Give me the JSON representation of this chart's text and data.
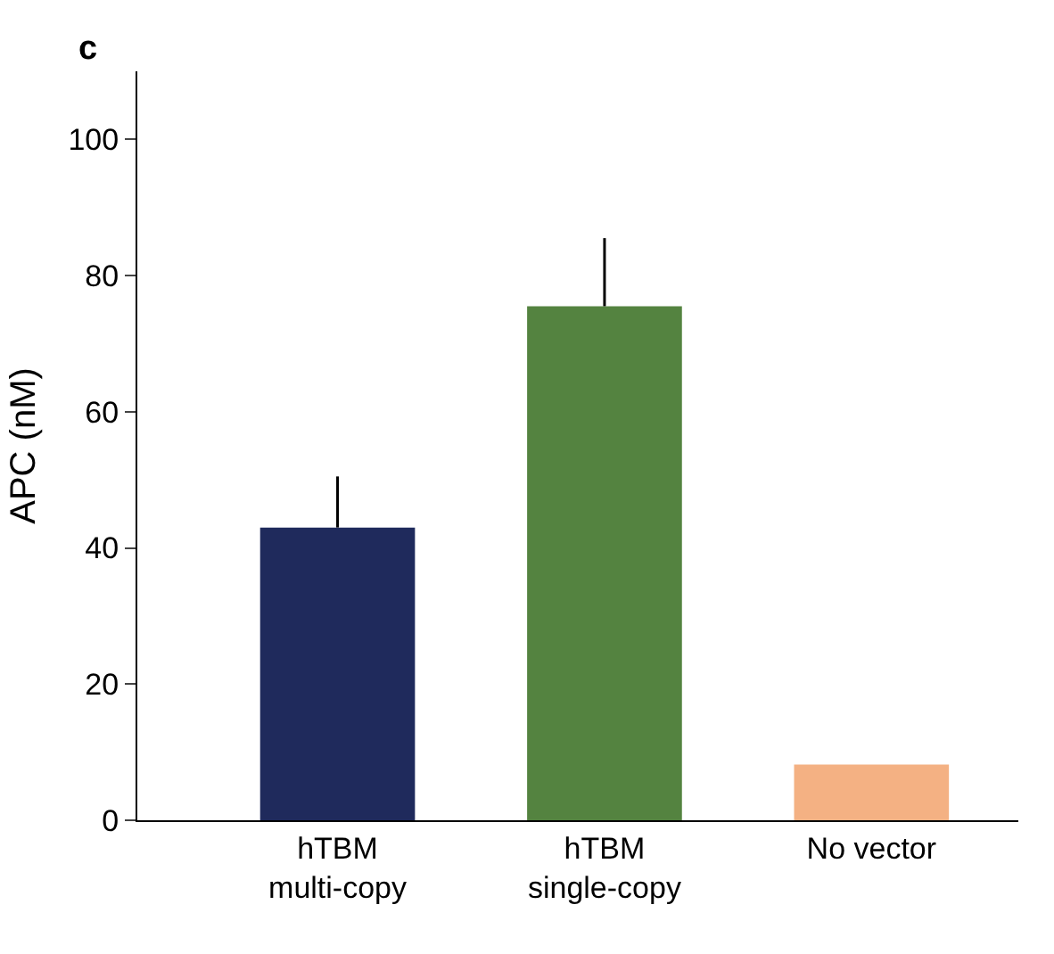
{
  "chart_data": {
    "type": "bar",
    "title": "c",
    "ylabel": "APC (nM)",
    "categories": [
      "hTBM\nmulti-copy",
      "hTBM\nsingle-copy",
      "No vector"
    ],
    "values": [
      43,
      75.5,
      8.2
    ],
    "colors": [
      "#1f2a5c",
      "#548340",
      "#f4b183"
    ],
    "errors": [
      [
        43,
        50.5
      ],
      [
        75.5,
        85.5
      ],
      null
    ],
    "ylim": [
      0,
      110
    ],
    "yticks": [
      0,
      20,
      40,
      60,
      80,
      100
    ]
  }
}
